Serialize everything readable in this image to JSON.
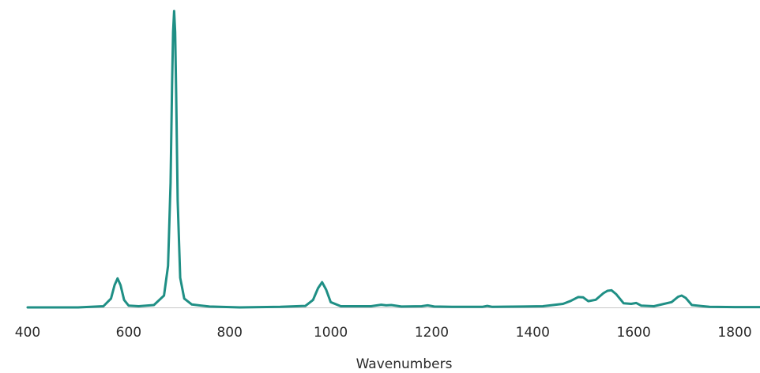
{
  "chart_data": {
    "type": "line",
    "title": "",
    "xlabel": "Wavenumbers",
    "ylabel": "",
    "xlim": [
      400,
      1850
    ],
    "ylim": [
      0,
      1.0
    ],
    "x_ticks": [
      400,
      600,
      800,
      1000,
      1200,
      1400,
      1600,
      1800
    ],
    "x_tick_labels": [
      "400",
      "600",
      "800",
      "1000",
      "1200",
      "1400",
      "1600",
      "1800"
    ],
    "grid": false,
    "line_color": "#1f8f85",
    "series": [
      {
        "x": [
          400,
          500,
          550,
          565,
          572,
          578,
          584,
          591,
          600,
          620,
          650,
          670,
          678,
          683,
          686,
          688,
          690,
          692,
          694,
          697,
          702,
          710,
          725,
          760,
          820,
          900,
          950,
          965,
          975,
          983,
          991,
          1000,
          1020,
          1080,
          1100,
          1110,
          1120,
          1140,
          1180,
          1192,
          1205,
          1240,
          1300,
          1310,
          1320,
          1380,
          1420,
          1460,
          1475,
          1490,
          1500,
          1510,
          1525,
          1540,
          1548,
          1556,
          1565,
          1580,
          1595,
          1605,
          1615,
          1640,
          1675,
          1688,
          1695,
          1703,
          1715,
          1750,
          1800,
          1850
        ],
        "y": [
          0.0,
          0.0,
          0.004,
          0.03,
          0.075,
          0.098,
          0.075,
          0.025,
          0.006,
          0.004,
          0.008,
          0.04,
          0.14,
          0.42,
          0.75,
          0.93,
          1.0,
          0.93,
          0.72,
          0.36,
          0.1,
          0.03,
          0.01,
          0.003,
          0.0,
          0.002,
          0.005,
          0.025,
          0.065,
          0.085,
          0.06,
          0.018,
          0.004,
          0.004,
          0.009,
          0.007,
          0.008,
          0.003,
          0.004,
          0.007,
          0.003,
          0.002,
          0.002,
          0.005,
          0.002,
          0.003,
          0.004,
          0.012,
          0.022,
          0.035,
          0.034,
          0.021,
          0.026,
          0.048,
          0.056,
          0.058,
          0.045,
          0.014,
          0.012,
          0.015,
          0.006,
          0.004,
          0.018,
          0.036,
          0.04,
          0.032,
          0.008,
          0.002,
          0.001,
          0.001
        ]
      }
    ]
  }
}
